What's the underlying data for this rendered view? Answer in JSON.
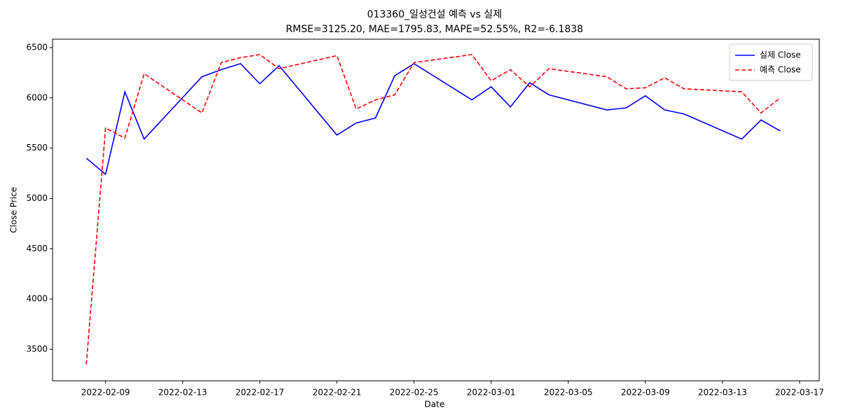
{
  "chart_data": {
    "type": "line",
    "title": "013360_일성건설 예측 vs 실제",
    "subtitle": "RMSE=3125.20, MAE=1795.83, MAPE=52.55%, R2=-6.1838",
    "xlabel": "Date",
    "ylabel": "Close Price",
    "x": [
      "2022-02-08",
      "2022-02-09",
      "2022-02-10",
      "2022-02-11",
      "2022-02-14",
      "2022-02-15",
      "2022-02-16",
      "2022-02-17",
      "2022-02-18",
      "2022-02-21",
      "2022-02-22",
      "2022-02-23",
      "2022-02-24",
      "2022-02-25",
      "2022-02-28",
      "2022-03-01",
      "2022-03-02",
      "2022-03-03",
      "2022-03-04",
      "2022-03-07",
      "2022-03-08",
      "2022-03-09",
      "2022-03-10",
      "2022-03-11",
      "2022-03-14",
      "2022-03-15",
      "2022-03-16"
    ],
    "series": [
      {
        "name": "실제 Close",
        "color": "#0000ff",
        "dash": false,
        "values": [
          5400,
          5240,
          6060,
          5590,
          6210,
          6280,
          6340,
          6140,
          6320,
          5630,
          5750,
          5800,
          6220,
          6340,
          5980,
          6110,
          5910,
          6150,
          6030,
          5880,
          5900,
          6020,
          5880,
          5840,
          5590,
          5780,
          5670
        ]
      },
      {
        "name": "예측 Close",
        "color": "#ff0000",
        "dash": true,
        "values": [
          3350,
          5700,
          5600,
          6240,
          5850,
          6350,
          6400,
          6430,
          6290,
          6420,
          5890,
          5980,
          6030,
          6350,
          6430,
          6170,
          6280,
          6110,
          6290,
          6210,
          6090,
          6100,
          6200,
          6090,
          6060,
          5850,
          6000
        ]
      }
    ],
    "xlim": [
      "2022-02-06T06:00",
      "2022-03-18T00:30"
    ],
    "xticks": [
      "2022-02-09",
      "2022-02-13",
      "2022-02-17",
      "2022-02-21",
      "2022-02-25",
      "2022-03-01",
      "2022-03-05",
      "2022-03-09",
      "2022-03-13",
      "2022-03-17"
    ],
    "ylim": [
      3187,
      6583
    ],
    "yticks": [
      3500,
      4000,
      4500,
      5000,
      5500,
      6000,
      6500
    ],
    "legend": "upper right",
    "grid": false
  }
}
